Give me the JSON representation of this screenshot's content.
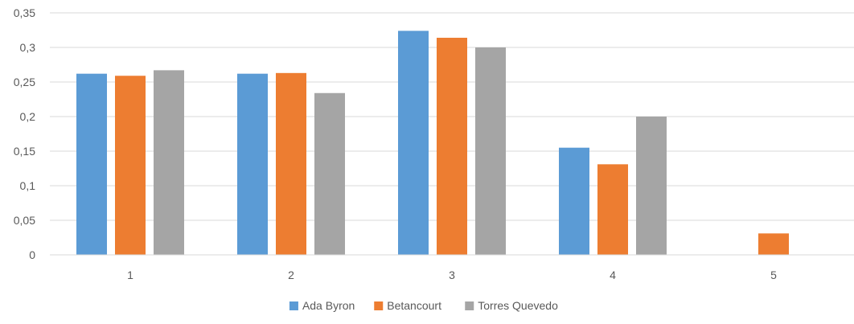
{
  "chart_data": {
    "type": "bar",
    "categories": [
      "1",
      "2",
      "3",
      "4",
      "5"
    ],
    "series": [
      {
        "name": "Ada Byron",
        "color": "#5B9BD5",
        "values": [
          0.262,
          0.262,
          0.324,
          0.155,
          0.0
        ]
      },
      {
        "name": "Betancourt",
        "color": "#ED7D31",
        "values": [
          0.259,
          0.263,
          0.314,
          0.131,
          0.031
        ]
      },
      {
        "name": "Torres Quevedo",
        "color": "#A5A5A5",
        "values": [
          0.267,
          0.234,
          0.3,
          0.2,
          0.0
        ]
      }
    ],
    "ylim": [
      0,
      0.35
    ],
    "yticks": [
      "0",
      "0,05",
      "0,1",
      "0,15",
      "0,2",
      "0,25",
      "0,3",
      "0,35"
    ],
    "grid": true,
    "legend_position": "bottom"
  }
}
